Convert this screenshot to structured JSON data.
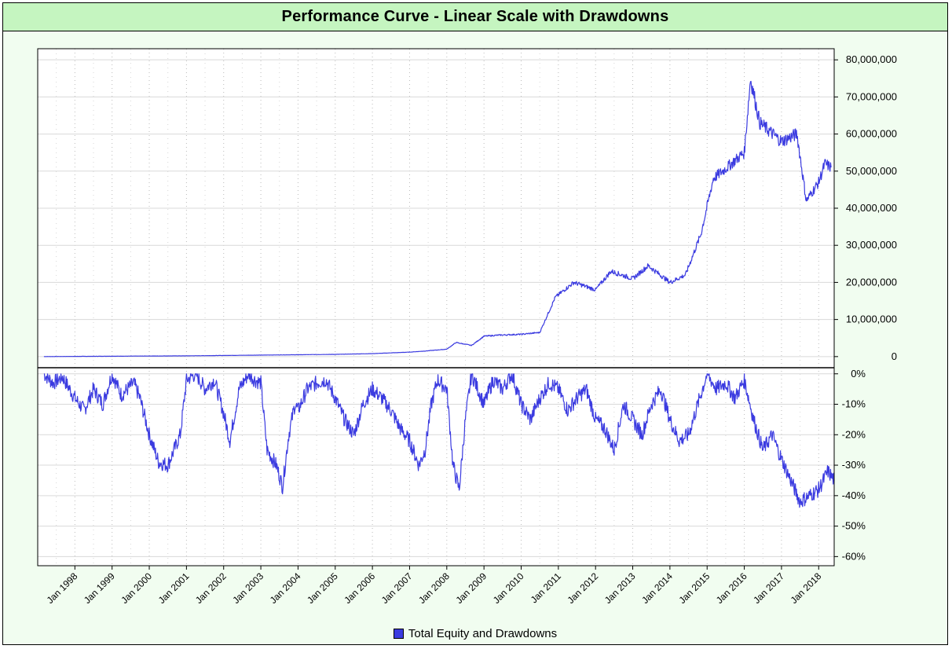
{
  "chart_data": [
    {
      "type": "line",
      "panel": "equity",
      "title": "Performance Curve - Linear Scale with Drawdowns",
      "ylim": [
        -3000000,
        83000000
      ],
      "yticks": [
        0,
        10000000,
        20000000,
        30000000,
        40000000,
        50000000,
        60000000,
        70000000,
        80000000
      ],
      "ytick_labels": [
        "0",
        "10,000,000",
        "20,000,000",
        "30,000,000",
        "40,000,000",
        "50,000,000",
        "60,000,000",
        "70,000,000",
        "80,000,000"
      ],
      "grid": true,
      "series": [
        {
          "name": "Total Equity and Drawdowns",
          "color": "#3b3be0",
          "x": [
            "1997-03",
            "1998-01",
            "1999-01",
            "2000-01",
            "2001-01",
            "2002-01",
            "2003-01",
            "2004-01",
            "2005-01",
            "2006-01",
            "2007-01",
            "2007-06",
            "2008-01",
            "2008-04",
            "2008-09",
            "2009-01",
            "2009-06",
            "2010-01",
            "2010-07",
            "2010-12",
            "2011-06",
            "2012-01",
            "2012-06",
            "2013-01",
            "2013-06",
            "2014-01",
            "2014-06",
            "2014-11",
            "2015-03",
            "2015-06",
            "2016-01",
            "2016-03",
            "2016-06",
            "2017-01",
            "2017-06",
            "2017-09",
            "2018-01",
            "2018-03",
            "2018-05"
          ],
          "y": [
            0,
            50000,
            100000,
            150000,
            200000,
            300000,
            400000,
            500000,
            600000,
            800000,
            1200000,
            1500000,
            2000000,
            3800000,
            3000000,
            5500000,
            5800000,
            6000000,
            6500000,
            16000000,
            20000000,
            18000000,
            23000000,
            21000000,
            24500000,
            20000000,
            22000000,
            33000000,
            48000000,
            50000000,
            55000000,
            75000000,
            63000000,
            58000000,
            60000000,
            42000000,
            47000000,
            52000000,
            51000000
          ]
        }
      ]
    },
    {
      "type": "line",
      "panel": "drawdown",
      "ylim": [
        -63,
        2
      ],
      "yticks": [
        0,
        -10,
        -20,
        -30,
        -40,
        -50,
        -60
      ],
      "ytick_labels": [
        "0%",
        "-10%",
        "-20%",
        "-30%",
        "-40%",
        "-50%",
        "-60%"
      ],
      "grid": true,
      "series": [
        {
          "name": "Total Equity and Drawdowns",
          "color": "#3b3be0",
          "x": [
            "1997-03",
            "1997-06",
            "1997-09",
            "1998-01",
            "1998-04",
            "1998-07",
            "1998-10",
            "1999-01",
            "1999-04",
            "1999-08",
            "1999-10",
            "2000-01",
            "2000-04",
            "2000-07",
            "2000-09",
            "2000-11",
            "2001-01",
            "2001-04",
            "2001-07",
            "2001-10",
            "2002-01",
            "2002-03",
            "2002-06",
            "2002-09",
            "2002-11",
            "2003-01",
            "2003-03",
            "2003-06",
            "2003-08",
            "2003-10",
            "2003-12",
            "2004-01",
            "2004-04",
            "2004-07",
            "2004-10",
            "2005-01",
            "2005-04",
            "2005-07",
            "2005-10",
            "2006-01",
            "2006-04",
            "2006-07",
            "2006-10",
            "2007-01",
            "2007-04",
            "2007-06",
            "2007-08",
            "2007-10",
            "2008-01",
            "2008-03",
            "2008-05",
            "2008-07",
            "2008-09",
            "2008-11",
            "2009-01",
            "2009-04",
            "2009-07",
            "2009-10",
            "2010-01",
            "2010-04",
            "2010-07",
            "2010-10",
            "2011-01",
            "2011-04",
            "2011-07",
            "2011-10",
            "2012-01",
            "2012-04",
            "2012-07",
            "2012-10",
            "2013-01",
            "2013-04",
            "2013-07",
            "2013-10",
            "2014-01",
            "2014-04",
            "2014-07",
            "2014-10",
            "2015-01",
            "2015-04",
            "2015-07",
            "2015-10",
            "2016-01",
            "2016-04",
            "2016-07",
            "2016-10",
            "2017-01",
            "2017-04",
            "2017-07",
            "2017-10",
            "2018-01",
            "2018-04",
            "2018-06"
          ],
          "y": [
            0,
            -3,
            -1,
            -8,
            -12,
            -5,
            -10,
            0,
            -7,
            -3,
            -8,
            -20,
            -29,
            -30,
            -25,
            -20,
            -2,
            0,
            -5,
            -2,
            -13,
            -22,
            -5,
            0,
            -2,
            -3,
            -25,
            -30,
            -37,
            -20,
            -10,
            -12,
            -5,
            -3,
            -2,
            -8,
            -15,
            -20,
            -10,
            -5,
            -8,
            -12,
            -18,
            -22,
            -30,
            -25,
            -10,
            -2,
            -5,
            -30,
            -38,
            -15,
            0,
            -5,
            -10,
            -2,
            -5,
            0,
            -10,
            -15,
            -8,
            -3,
            -5,
            -12,
            -8,
            -5,
            -15,
            -18,
            -25,
            -10,
            -15,
            -20,
            -10,
            -5,
            -15,
            -22,
            -20,
            -10,
            0,
            -5,
            -3,
            -8,
            -2,
            -15,
            -25,
            -20,
            -28,
            -35,
            -42,
            -40,
            -38,
            -32,
            -35
          ]
        }
      ]
    }
  ],
  "x_axis": {
    "labels": [
      "Jan 1998",
      "Jan 1999",
      "Jan 2000",
      "Jan 2001",
      "Jan 2002",
      "Jan 2003",
      "Jan 2004",
      "Jan 2005",
      "Jan 2006",
      "Jan 2007",
      "Jan 2008",
      "Jan 2009",
      "Jan 2010",
      "Jan 2011",
      "Jan 2012",
      "Jan 2013",
      "Jan 2014",
      "Jan 2015",
      "Jan 2016",
      "Jan 2017",
      "Jan 2018"
    ],
    "start": "1997-01",
    "end": "2018-06"
  },
  "legend": {
    "label": "Total Equity and Drawdowns",
    "placement": "bottom-center",
    "color": "#3b3be0"
  }
}
